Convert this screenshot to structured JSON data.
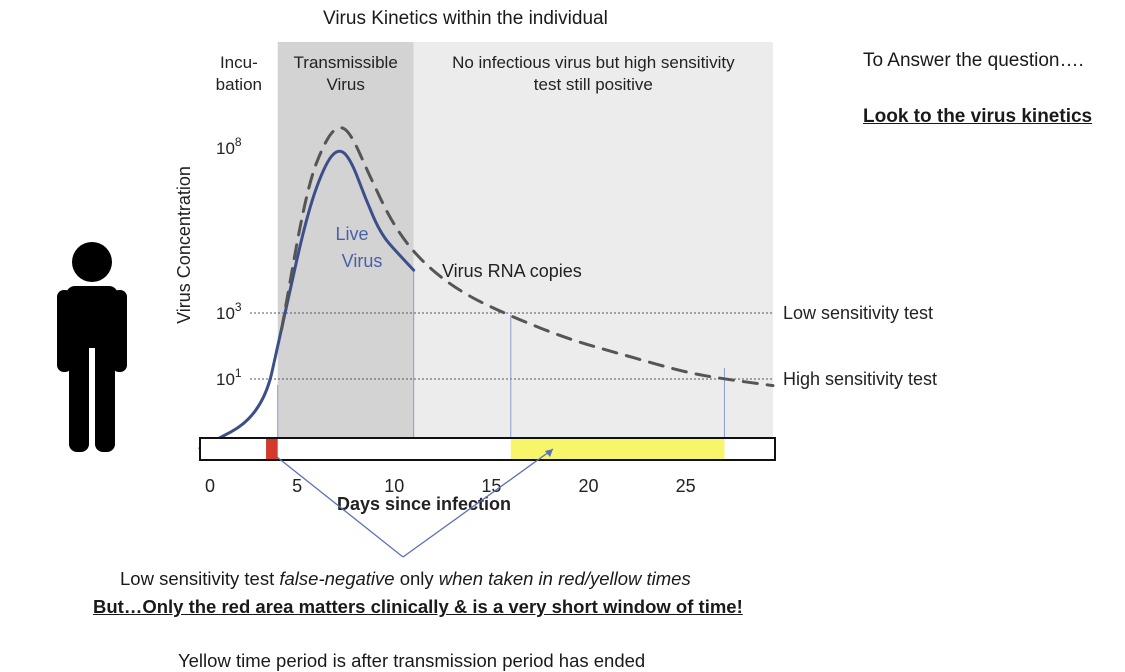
{
  "figure": {
    "title": "Virus Kinetics within the individual",
    "side_note": "To Answer the question….",
    "side_link": "Look to the virus kinetics",
    "bottom": {
      "line1_a": "Low sensitivity test ",
      "line1_b": "false-negative",
      "line1_c": " only ",
      "line1_d": "when taken in red/yellow times",
      "line2": "But…Only the red area matters clinically & is a very short window of time!",
      "line3": "Yellow time period is after transmission period has ended"
    },
    "icon": "person-icon"
  },
  "chart_data": {
    "type": "line",
    "xlabel": "Days since infection",
    "ylabel": "Virus Concentration",
    "x_ticks": [
      0,
      5,
      10,
      15,
      20,
      25
    ],
    "xlim": [
      0,
      29.5
    ],
    "y_ticks": [
      {
        "label": "10",
        "sup": "8",
        "log10": 8
      },
      {
        "label": "10",
        "sup": "3",
        "log10": 3
      },
      {
        "label": "10",
        "sup": "1",
        "log10": 1
      }
    ],
    "y_scale": "log",
    "regions": [
      {
        "label_lines": [
          "Incu-",
          "bation"
        ],
        "from_day": 0,
        "to_day": 4,
        "color": "#ffffff"
      },
      {
        "label_lines": [
          "Transmissible",
          "Virus"
        ],
        "from_day": 4,
        "to_day": 11,
        "color": "#d3d3d3"
      },
      {
        "label_lines": [
          "No infectious virus but high sensitivity",
          "test still positive"
        ],
        "from_day": 11,
        "to_day": 29.5,
        "color": "#ececec"
      }
    ],
    "thresholds": [
      {
        "name": "Low sensitivity test",
        "log10": 3
      },
      {
        "name": "High sensitivity test",
        "log10": 1
      }
    ],
    "series": [
      {
        "name": "Live Virus",
        "label_lines": [
          "Live",
          "Virus"
        ],
        "style": "solid",
        "color": "#3d4f8a",
        "x": [
          0,
          3.2,
          4.2,
          5.5,
          6.5,
          7.2,
          7.8,
          8.5,
          9.3,
          10.2,
          11
        ],
        "log10": [
          -1.1,
          -0.1,
          2.5,
          6.0,
          7.6,
          8.0,
          7.6,
          6.5,
          5.4,
          4.8,
          4.3
        ]
      },
      {
        "name": "Virus RNA copies",
        "style": "dashed",
        "color": "#555555",
        "x": [
          4.2,
          5.5,
          6.5,
          7.2,
          7.8,
          8.7,
          10,
          11.5,
          13.5,
          16,
          19,
          22,
          25,
          27,
          29.5
        ],
        "log10": [
          2.5,
          6.8,
          8.3,
          8.7,
          8.4,
          7.2,
          5.6,
          4.5,
          3.6,
          2.9,
          2.2,
          1.7,
          1.2,
          1.0,
          0.8
        ]
      }
    ],
    "timeline_bar": {
      "segments": [
        {
          "name": "red",
          "from_day": 3.4,
          "to_day": 4.0,
          "color": "#d33a2c"
        },
        {
          "name": "yellow",
          "from_day": 16,
          "to_day": 27,
          "color": "#f7f56a"
        }
      ]
    },
    "markers_day": [
      4.0,
      11,
      16,
      27
    ]
  }
}
